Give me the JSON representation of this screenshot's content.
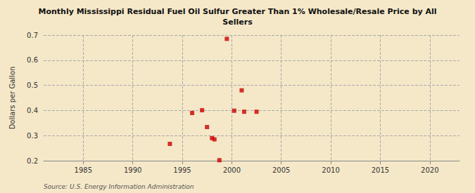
{
  "chart_data": {
    "type": "scatter",
    "title": "Monthly Mississippi Residual Fuel Oil Sulfur Greater Than 1% Wholesale/Resale Price by All\nSellers",
    "ylabel": "Dollars per Gallon",
    "source": "Source: U.S. Energy Information Administration",
    "x": [
      1993.75,
      1996.0,
      1997.0,
      1997.5,
      1998.0,
      1998.25,
      1998.75,
      1999.5,
      2000.25,
      2001.0,
      2001.25,
      2002.5
    ],
    "values": [
      0.267,
      0.39,
      0.401,
      0.334,
      0.29,
      0.285,
      0.202,
      0.685,
      0.399,
      0.48,
      0.395,
      0.395
    ],
    "color": "#cc0000",
    "marker": "square",
    "xlim": [
      1981,
      2023
    ],
    "ylim": [
      0.2,
      0.7
    ],
    "xticks": [
      1985,
      1990,
      1995,
      2000,
      2005,
      2010,
      2015,
      2020
    ],
    "yticks": [
      0.2,
      0.3,
      0.4,
      0.5,
      0.6,
      0.7
    ],
    "grid": true
  }
}
